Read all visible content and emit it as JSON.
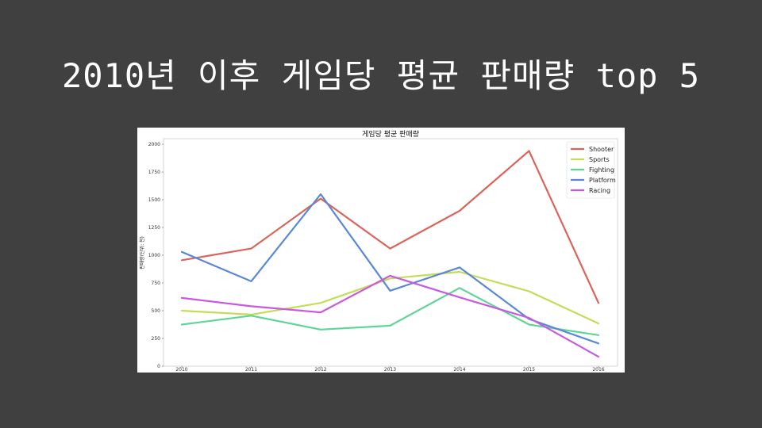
{
  "slide": {
    "title": "2010년 이후 게임당 평균 판매량 top 5"
  },
  "chart_data": {
    "type": "line",
    "title": "게임당 평균 판매량",
    "xlabel": "",
    "ylabel": "판매량(단위: 천)",
    "x": [
      "2010",
      "2011",
      "2012",
      "2013",
      "2014",
      "2015",
      "2016"
    ],
    "ylim": [
      0,
      2050
    ],
    "yticks": [
      0,
      250,
      500,
      750,
      1000,
      1250,
      1500,
      1750,
      2000
    ],
    "grid": false,
    "legend_position": "top-right",
    "series": [
      {
        "name": "Shooter",
        "color": "#d9655a",
        "values": [
          955,
          1060,
          1510,
          1060,
          1400,
          1940,
          570
        ]
      },
      {
        "name": "Sports",
        "color": "#c2dd58",
        "values": [
          500,
          465,
          570,
          790,
          850,
          675,
          385
        ]
      },
      {
        "name": "Fighting",
        "color": "#5fd598",
        "values": [
          375,
          455,
          330,
          365,
          705,
          375,
          280
        ]
      },
      {
        "name": "Platform",
        "color": "#5a88d8",
        "values": [
          1030,
          765,
          1550,
          680,
          890,
          425,
          205
        ]
      },
      {
        "name": "Racing",
        "color": "#c95ae0",
        "values": [
          615,
          540,
          485,
          815,
          620,
          435,
          85
        ]
      }
    ]
  }
}
